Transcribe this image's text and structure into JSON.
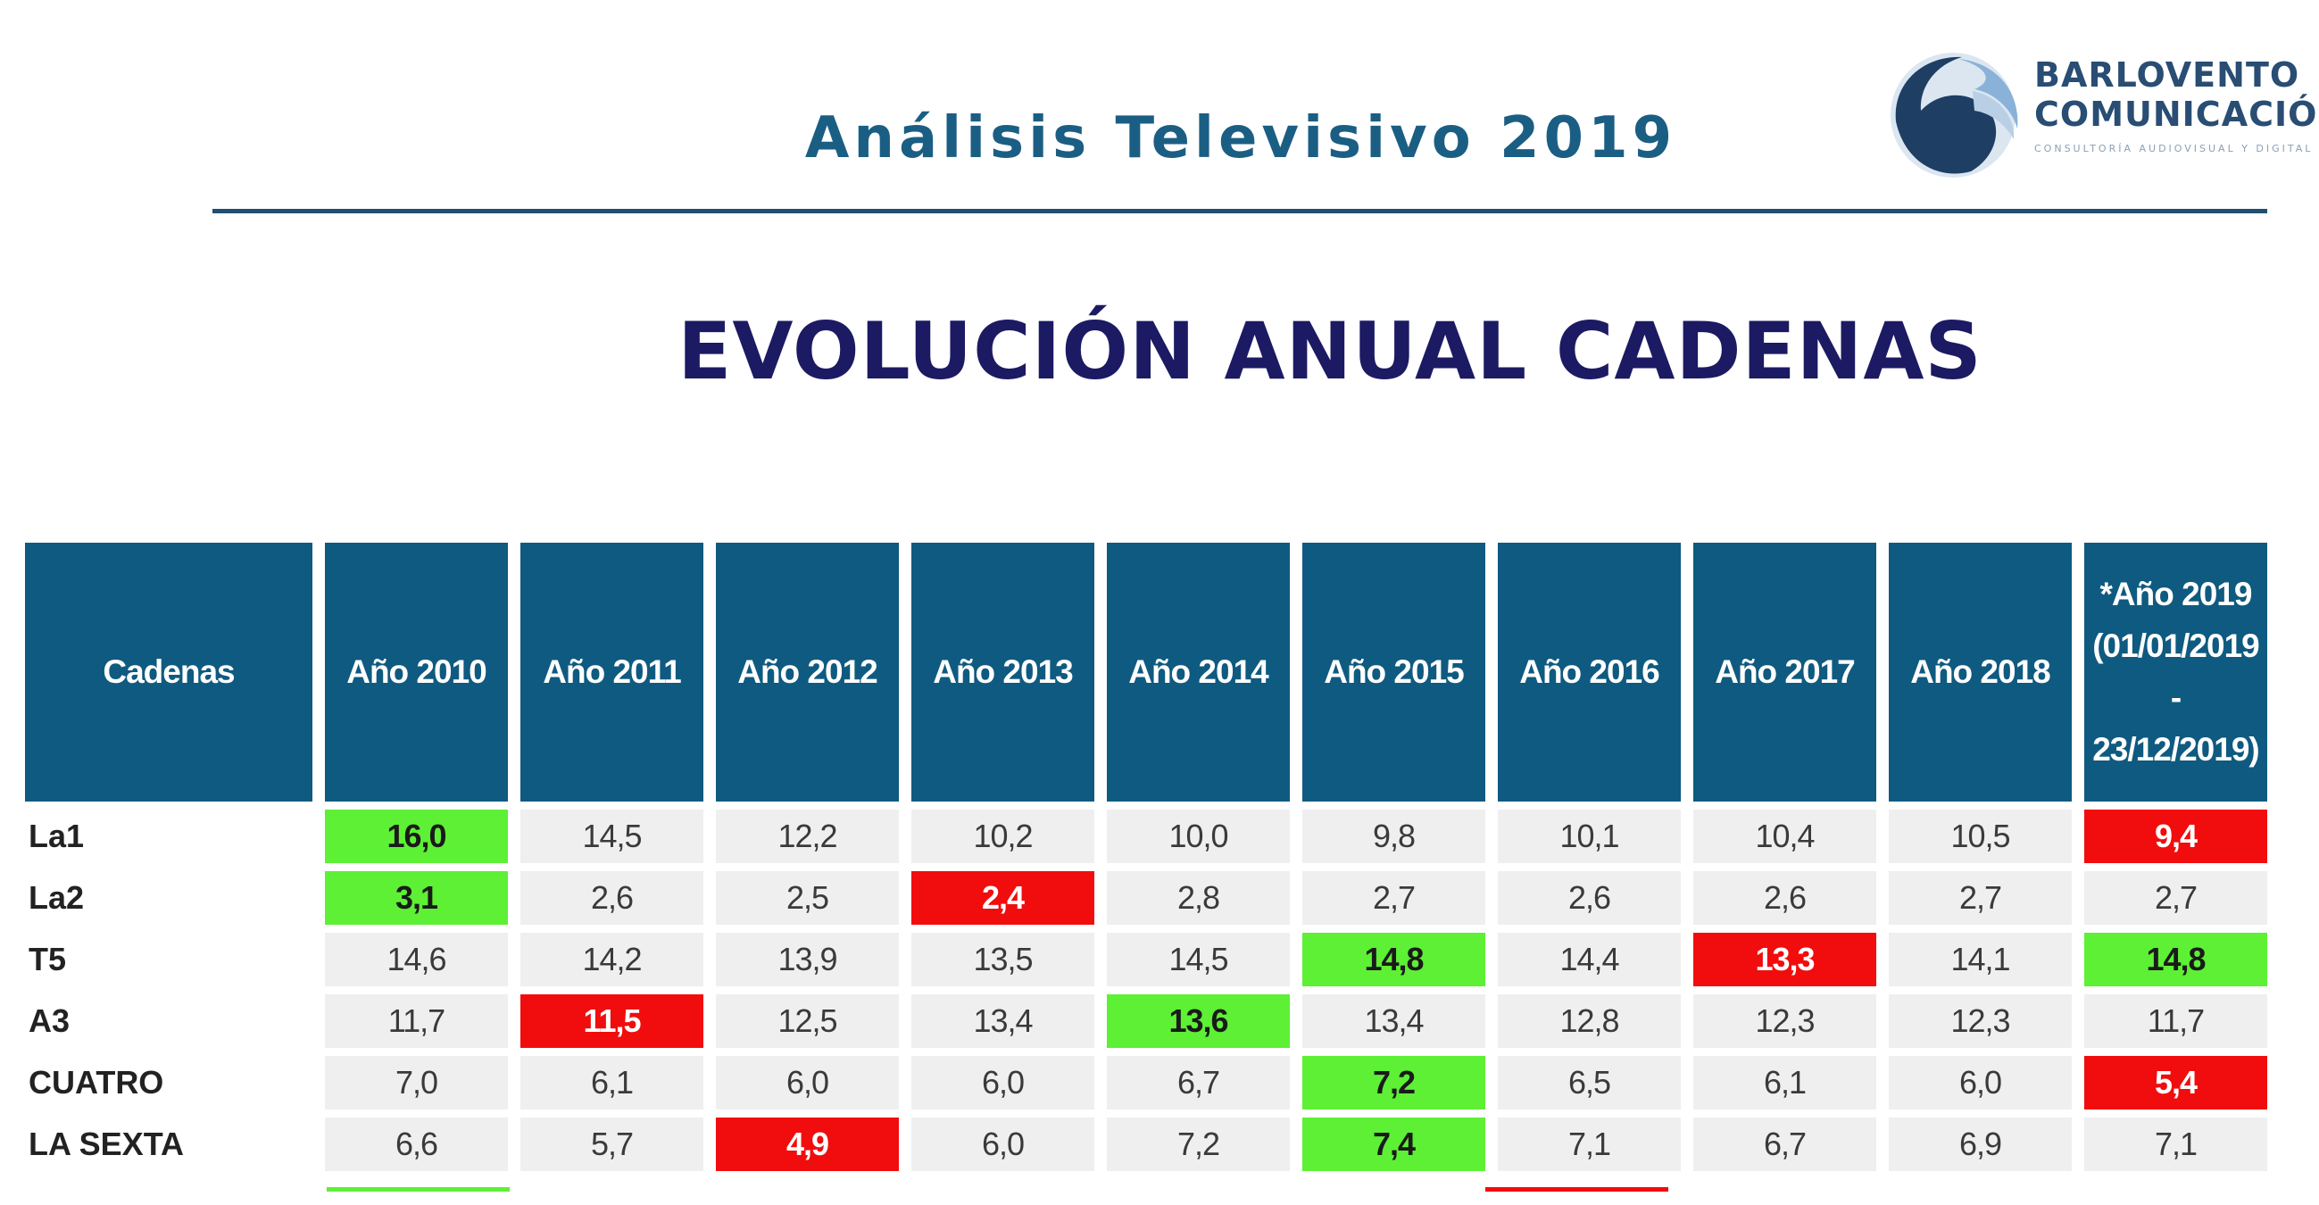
{
  "header": {
    "title": "Análisis Televisivo 2019",
    "logo": {
      "line1": "BARLOVENTO",
      "line2": "COMUNICACIÓN",
      "tagline": "CONSULTORÍA AUDIOVISUAL Y DIGITAL",
      "mark_color": "#1e3e63",
      "mark_accent": "#8ab2d8"
    }
  },
  "section": {
    "title": "EVOLUCIÓN ANUAL CADENAS"
  },
  "colors": {
    "header_bg": "#0f5a80",
    "highlight_max": "#5df035",
    "highlight_min": "#f10d0d",
    "cell_bg": "#efefef"
  },
  "table": {
    "columns": [
      "Cadenas",
      "Año 2010",
      "Año 2011",
      "Año 2012",
      "Año 2013",
      "Año 2014",
      "Año 2015",
      "Año 2016",
      "Año 2017",
      "Año 2018",
      "*Año 2019 (01/01/2019 - 23/12/2019)"
    ],
    "rows": [
      {
        "name": "La1",
        "values": [
          "16,0",
          "14,5",
          "12,2",
          "10,2",
          "10,0",
          "9,8",
          "10,1",
          "10,4",
          "10,5",
          "9,4"
        ],
        "max_col": 0,
        "min_col": 9
      },
      {
        "name": "La2",
        "values": [
          "3,1",
          "2,6",
          "2,5",
          "2,4",
          "2,8",
          "2,7",
          "2,6",
          "2,6",
          "2,7",
          "2,7"
        ],
        "max_col": 0,
        "min_col": 3
      },
      {
        "name": "T5",
        "values": [
          "14,6",
          "14,2",
          "13,9",
          "13,5",
          "14,5",
          "14,8",
          "14,4",
          "13,3",
          "14,1",
          "14,8"
        ],
        "max_col": [
          5,
          9
        ],
        "min_col": 7
      },
      {
        "name": "A3",
        "values": [
          "11,7",
          "11,5",
          "12,5",
          "13,4",
          "13,6",
          "13,4",
          "12,8",
          "12,3",
          "12,3",
          "11,7"
        ],
        "max_col": 4,
        "min_col": 1
      },
      {
        "name": "CUATRO",
        "values": [
          "7,0",
          "6,1",
          "6,0",
          "6,0",
          "6,7",
          "7,2",
          "6,5",
          "6,1",
          "6,0",
          "5,4"
        ],
        "max_col": 5,
        "min_col": 9
      },
      {
        "name": "LA SEXTA",
        "values": [
          "6,6",
          "5,7",
          "4,9",
          "6,0",
          "7,2",
          "7,4",
          "7,1",
          "6,7",
          "6,9",
          "7,1"
        ],
        "max_col": 5,
        "min_col": 2
      }
    ]
  }
}
